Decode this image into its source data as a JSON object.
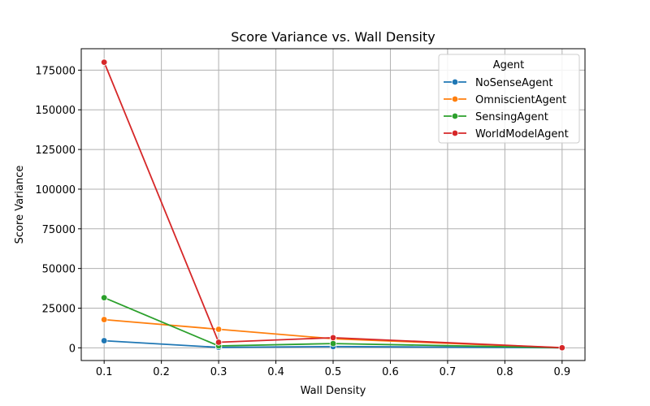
{
  "chart_data": {
    "type": "line",
    "title": "Score Variance vs. Wall Density",
    "xlabel": "Wall Density",
    "ylabel": "Score Variance",
    "x": [
      0.1,
      0.3,
      0.5,
      0.9
    ],
    "xlim": [
      0.06,
      0.94
    ],
    "ylim": [
      -8000,
      188500
    ],
    "xticks": [
      "0.1",
      "0.2",
      "0.3",
      "0.4",
      "0.5",
      "0.6",
      "0.7",
      "0.8",
      "0.9"
    ],
    "yticks": [
      "0",
      "25000",
      "50000",
      "75000",
      "100000",
      "125000",
      "150000",
      "175000"
    ],
    "grid": true,
    "legend": {
      "title": "Agent",
      "placement": "top-right"
    },
    "series": [
      {
        "name": "NoSenseAgent",
        "color": "#1f77b4",
        "values": [
          4500,
          300,
          800,
          30
        ]
      },
      {
        "name": "OmniscientAgent",
        "color": "#ff7f0e",
        "values": [
          17800,
          11700,
          5700,
          40
        ]
      },
      {
        "name": "SensingAgent",
        "color": "#2ca02c",
        "values": [
          31600,
          1200,
          2700,
          40
        ]
      },
      {
        "name": "WorldModelAgent",
        "color": "#d62728",
        "values": [
          180000,
          3500,
          6400,
          70
        ]
      }
    ]
  }
}
